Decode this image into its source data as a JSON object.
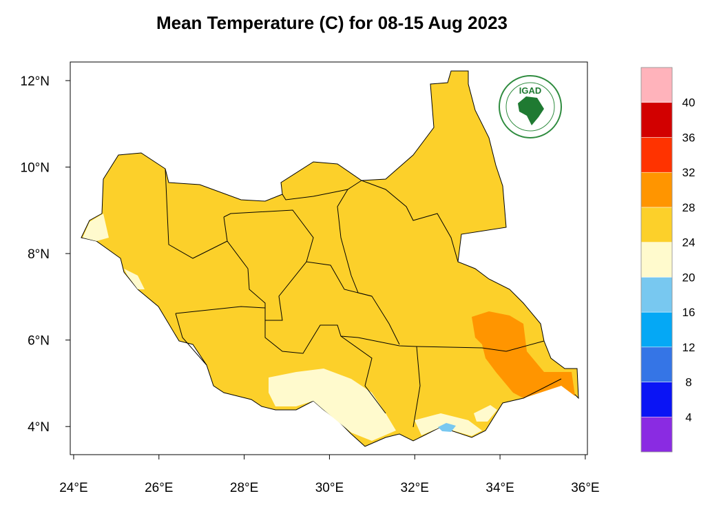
{
  "title": "Mean Temperature (C) for 08-15 Aug 2023",
  "map": {
    "xlim": [
      23.92,
      36.05
    ],
    "ylim": [
      3.35,
      12.43
    ],
    "xticks": [
      {
        "value": 24,
        "label": "24°E"
      },
      {
        "value": 26,
        "label": "26°E"
      },
      {
        "value": 28,
        "label": "28°E"
      },
      {
        "value": 30,
        "label": "30°E"
      },
      {
        "value": 32,
        "label": "32°E"
      },
      {
        "value": 34,
        "label": "34°E"
      },
      {
        "value": 36,
        "label": "36°E"
      }
    ],
    "yticks": [
      {
        "value": 4,
        "label": "4°N"
      },
      {
        "value": 6,
        "label": "6°N"
      },
      {
        "value": 8,
        "label": "8°N"
      },
      {
        "value": 10,
        "label": "10°N"
      },
      {
        "value": 12,
        "label": "12°N"
      }
    ]
  },
  "colorbar": {
    "levels": [
      4,
      8,
      12,
      16,
      20,
      24,
      28,
      32,
      36,
      40
    ],
    "colors": [
      "#8a2be2",
      "#0a14f5",
      "#3575e6",
      "#05a8f5",
      "#78c8f0",
      "#fffacd",
      "#fcd02a",
      "#ff9500",
      "#ff3300",
      "#d20000",
      "#ffb3bb"
    ]
  },
  "logo": {
    "text": "IGAD"
  }
}
